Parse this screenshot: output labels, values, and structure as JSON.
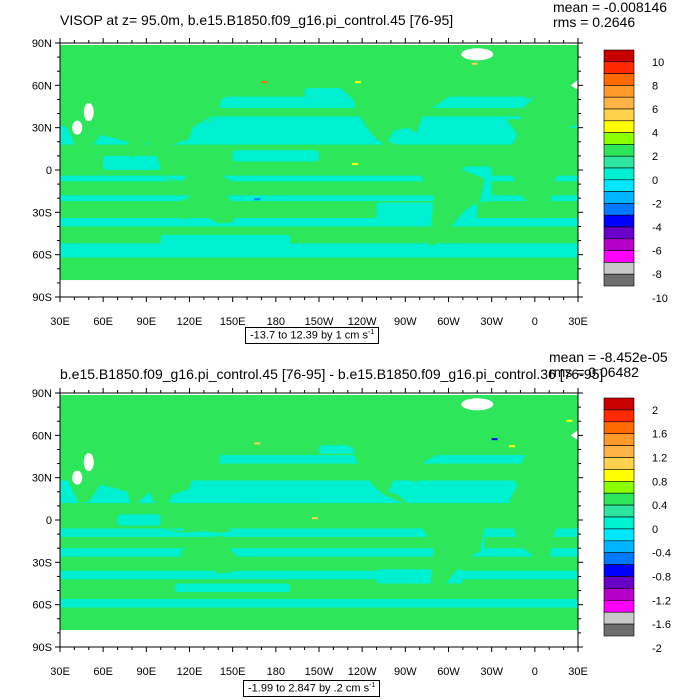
{
  "panels": [
    {
      "title": "VISOP at z=  95.0m, b.e15.B1850.f09_g16.pi_control.45 [76-95]",
      "mean": "mean = -0.008146",
      "rms": "rms = 0.2646",
      "range_text": "-13.7 to 12.39 by 1 cm s",
      "range_unit_sup": "-1",
      "colorbar": {
        "labels": [
          "10",
          "8",
          "6",
          "4",
          "2",
          "0",
          "-2",
          "-4",
          "-6",
          "-8",
          "-10"
        ],
        "colors": [
          "#c80000",
          "#ff2a00",
          "#ff6a00",
          "#ff9a2a",
          "#ffb347",
          "#ffd24d",
          "#ffff00",
          "#8cff00",
          "#2ee65a",
          "#2ee6a0",
          "#00f0d2",
          "#00e6ff",
          "#00b4ff",
          "#0078ff",
          "#0000ff",
          "#6a00c8",
          "#b400c8",
          "#ff00ff",
          "#c8c8c8",
          "#6e6e6e"
        ]
      }
    },
    {
      "title": "b.e15.B1850.f09_g16.pi_control.45 [76-95] - b.e15.B1850.f09_g16.pi_control.36 [76-95]",
      "mean": "mean = -8.452e-05",
      "rms": "rms = 0.06482",
      "range_text": "-1.99 to 2.847 by .2 cm s",
      "range_unit_sup": "-1",
      "colorbar": {
        "labels": [
          "2",
          "1.6",
          "1.2",
          "0.8",
          "0.4",
          "0",
          "-0.4",
          "-0.8",
          "-1.2",
          "-1.6",
          "-2"
        ],
        "colors": [
          "#c80000",
          "#ff2a00",
          "#ff6a00",
          "#ff9a2a",
          "#ffb347",
          "#ffd24d",
          "#ffff00",
          "#8cff00",
          "#2ee65a",
          "#2ee6a0",
          "#00f0d2",
          "#00e6ff",
          "#00b4ff",
          "#0078ff",
          "#0000ff",
          "#6a00c8",
          "#b400c8",
          "#ff00ff",
          "#c8c8c8",
          "#6e6e6e"
        ]
      }
    }
  ],
  "axes": {
    "lat_labels": [
      "90N",
      "60N",
      "30N",
      "0",
      "30S",
      "60S",
      "90S"
    ],
    "lon_labels": [
      "30E",
      "60E",
      "90E",
      "120E",
      "150E",
      "180",
      "150W",
      "120W",
      "90W",
      "60W",
      "30W",
      "0",
      "30E"
    ]
  },
  "colors": {
    "land": "#2ee65a",
    "ocean": "#00f0d2",
    "missing": "#ffffff"
  }
}
